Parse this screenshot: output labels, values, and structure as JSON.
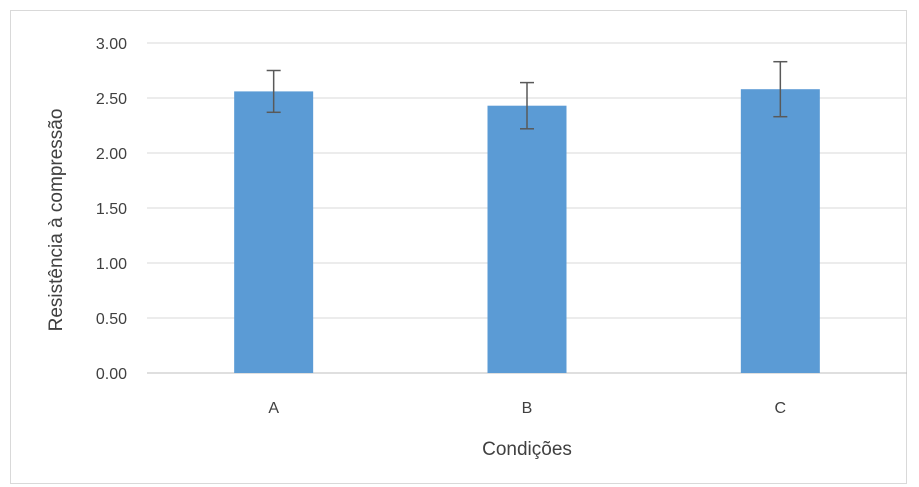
{
  "chart_data": {
    "type": "bar",
    "title": "",
    "xlabel": "Condições",
    "ylabel": "Resistência à compressão",
    "categories": [
      "A",
      "B",
      "C"
    ],
    "series": [
      {
        "values": [
          2.56,
          2.43,
          2.58
        ],
        "error": [
          0.19,
          0.21,
          0.25
        ],
        "color": "#5b9bd5"
      }
    ],
    "ylim": [
      0,
      3
    ],
    "yticks": [
      "0.00",
      "0.50",
      "1.00",
      "1.50",
      "2.00",
      "2.50",
      "3.00"
    ],
    "grid": true,
    "legend": "none"
  }
}
